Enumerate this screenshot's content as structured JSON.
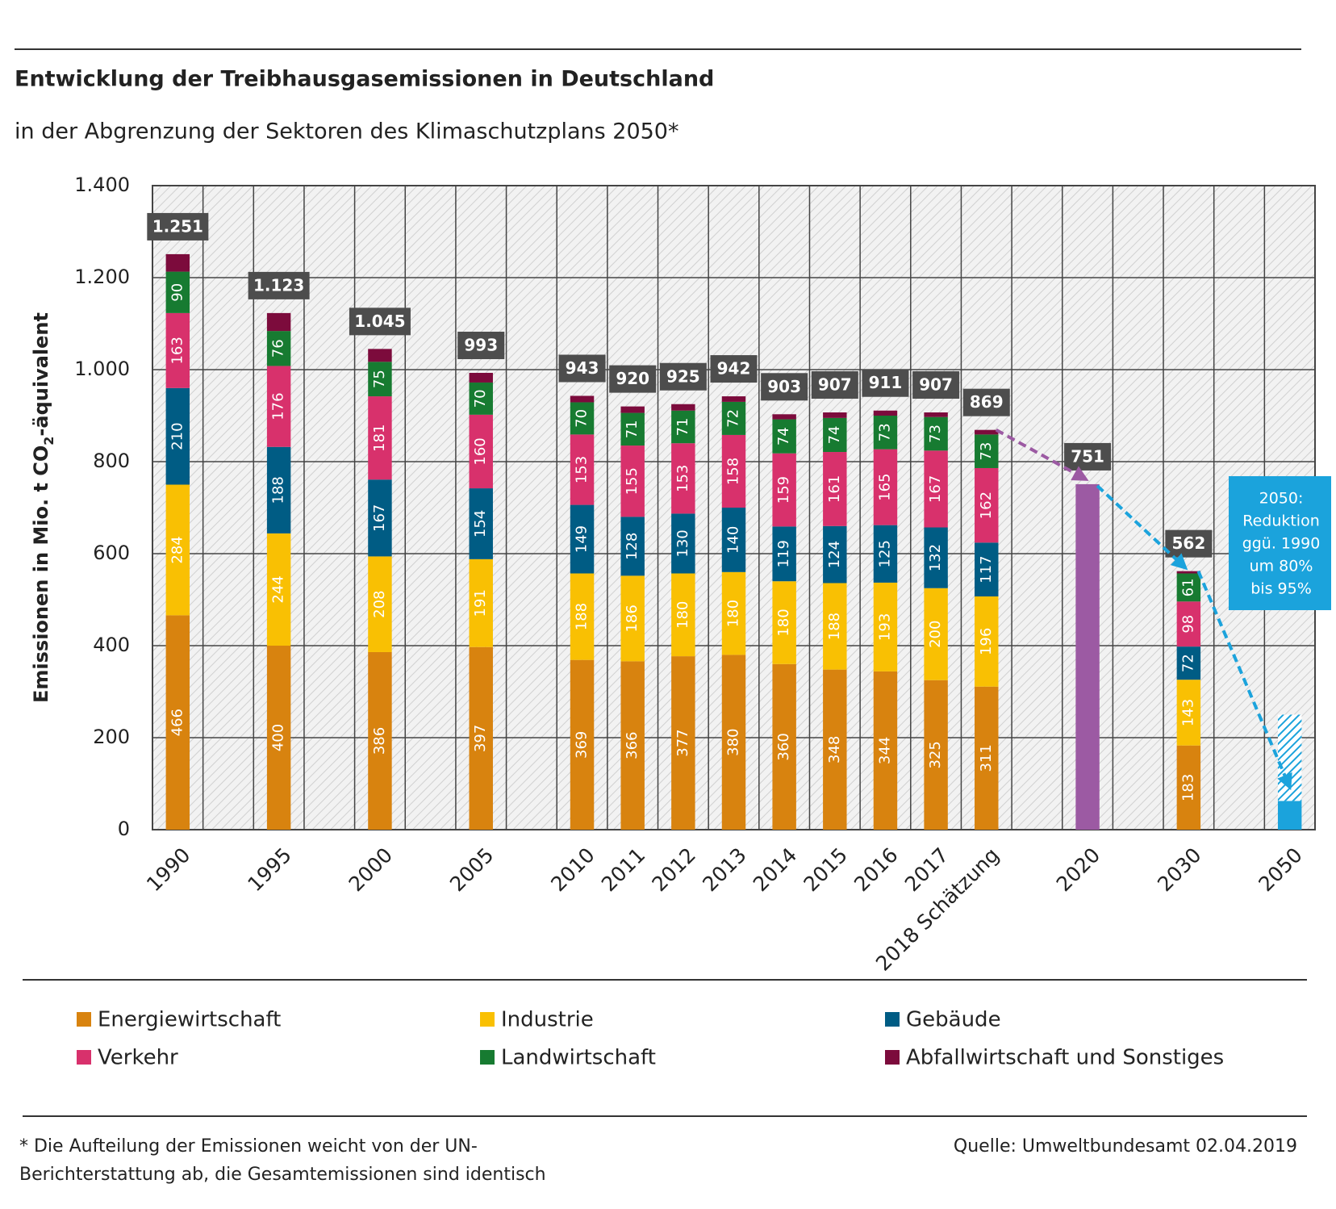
{
  "chart_data": {
    "type": "bar",
    "title": "Entwicklung der Treibhausgasemissionen  in Deutschland",
    "subtitle": "in der Abgrenzung  der Sektoren des Klimaschutzplans  2050*",
    "y_label": [
      "Emissionen in Mio. t CO",
      "2",
      "-äquivalent"
    ],
    "categories": [
      "1990",
      null,
      "1995",
      null,
      "2000",
      null,
      "2005",
      null,
      "2010",
      "2011",
      "2012",
      "2013",
      "2014",
      "2015",
      "2016",
      "2017",
      "2018 Schätzung",
      null,
      "2020",
      null,
      "2030",
      null,
      "2050"
    ],
    "series": [
      {
        "name": "Energiewirtschaft",
        "color": "#d8830f",
        "labeled": true,
        "values": [
          466,
          null,
          400,
          null,
          386,
          null,
          397,
          null,
          369,
          366,
          377,
          380,
          360,
          348,
          344,
          325,
          311,
          null,
          null,
          null,
          183,
          null,
          null
        ]
      },
      {
        "name": "Industrie",
        "color": "#f9c003",
        "labeled": true,
        "values": [
          284,
          null,
          244,
          null,
          208,
          null,
          191,
          null,
          188,
          186,
          180,
          180,
          180,
          188,
          193,
          200,
          196,
          null,
          null,
          null,
          143,
          null,
          null
        ]
      },
      {
        "name": "Gebäude",
        "color": "#005c84",
        "labeled": true,
        "values": [
          210,
          null,
          188,
          null,
          167,
          null,
          154,
          null,
          149,
          128,
          130,
          140,
          119,
          124,
          125,
          132,
          117,
          null,
          null,
          null,
          72,
          null,
          null
        ]
      },
      {
        "name": "Verkehr",
        "color": "#d8316c",
        "labeled": true,
        "values": [
          163,
          null,
          176,
          null,
          181,
          null,
          160,
          null,
          153,
          155,
          153,
          158,
          159,
          161,
          165,
          167,
          162,
          null,
          null,
          null,
          98,
          null,
          null
        ]
      },
      {
        "name": "Landwirtschaft",
        "color": "#177b31",
        "labeled": true,
        "values": [
          90,
          null,
          76,
          null,
          75,
          null,
          70,
          null,
          70,
          71,
          71,
          72,
          74,
          74,
          73,
          73,
          73,
          null,
          null,
          null,
          61,
          null,
          null
        ]
      },
      {
        "name": "Abfallwirtschaft und Sonstiges",
        "color": "#7c0b3c",
        "labeled": false,
        "values": [
          38,
          null,
          39,
          null,
          28,
          null,
          21,
          null,
          14,
          14,
          14,
          12,
          11,
          12,
          11,
          10,
          10,
          null,
          null,
          null,
          5,
          null,
          null
        ]
      }
    ],
    "totals": {
      "values": [
        1251,
        null,
        1123,
        null,
        1045,
        null,
        993,
        null,
        943,
        920,
        925,
        942,
        903,
        907,
        911,
        907,
        869,
        null,
        751,
        null,
        562,
        null,
        null
      ],
      "value_labels": [
        "1.251",
        null,
        "1.123",
        null,
        "1.045",
        null,
        "993",
        null,
        "943",
        "920",
        "925",
        "942",
        "903",
        "907",
        "911",
        "907",
        "869",
        null,
        "751",
        null,
        "562",
        null,
        null
      ]
    },
    "goal_2020": {
      "category": "2020",
      "color": "#9c5aa3",
      "value": 751
    },
    "goal_2050": {
      "category": "2050",
      "color": "#1ba3dc",
      "values": [
        62.5,
        250
      ]
    },
    "annotation": [
      "2050:",
      "Reduktion",
      "ggü. 1990",
      "um 80%",
      "bis 95%"
    ],
    "ylim": [
      0,
      1400
    ],
    "yticks": [
      0,
      200,
      400,
      600,
      800,
      {
        "value": 1000,
        "label": "1.000"
      },
      {
        "value": 1200,
        "label": "1.200"
      },
      {
        "value": 1400,
        "label": "1.400"
      }
    ],
    "grid": true,
    "footnote": [
      "* Die Aufteilung der Emissionen weicht von der UN-",
      "Berichterstattung ab, die Gesamtemissionen sind identisch"
    ],
    "source": "Quelle: Umweltbundesamt 02.04.2019"
  }
}
